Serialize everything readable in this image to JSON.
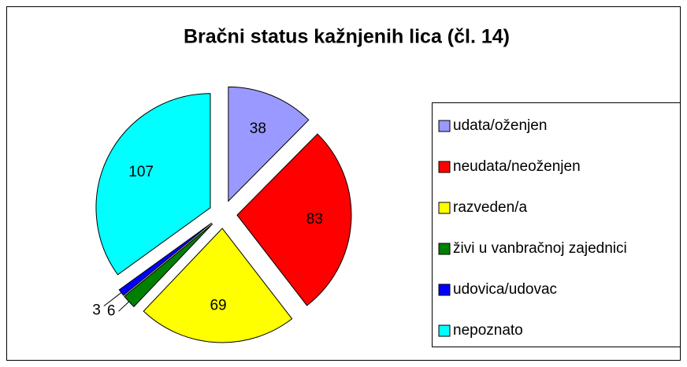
{
  "chart_data": {
    "type": "pie",
    "title": "Bračni status kažnjenih lica (čl. 14)",
    "categories": [
      "udata/oženjen",
      "neudata/neoženjen",
      "razveden/a",
      "živi u vanbračnoj zajednici",
      "udovica/udovac",
      "nepoznato"
    ],
    "values": [
      38,
      83,
      69,
      6,
      3,
      107
    ],
    "colors": [
      "#9999ff",
      "#ff0000",
      "#ffff00",
      "#008000",
      "#0000ff",
      "#00ffff"
    ],
    "legend": "right"
  }
}
